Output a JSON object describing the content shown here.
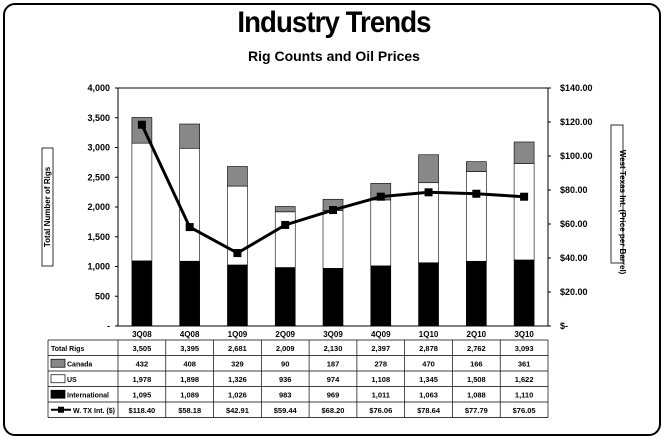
{
  "header": {
    "title": "Industry Trends",
    "subtitle": "Rig Counts and Oil Prices"
  },
  "chart_data": {
    "type": "bar",
    "stacked": true,
    "categories": [
      "3Q08",
      "4Q08",
      "1Q09",
      "2Q09",
      "3Q09",
      "4Q09",
      "1Q10",
      "2Q10",
      "3Q10"
    ],
    "ylabel": "Total Number of Rigs",
    "y2label": "West Texas Int. (Price per Barrel)",
    "ylim": [
      0,
      4000
    ],
    "y2lim": [
      0,
      140
    ],
    "yticks": [
      "-",
      "500",
      "1,000",
      "1,500",
      "2,000",
      "2,500",
      "3,000",
      "3,500",
      "4,000"
    ],
    "y2ticks": [
      "$-",
      "$20.00",
      "$40.00",
      "$60.00",
      "$80.00",
      "$100.00",
      "$120.00",
      "$140.00"
    ],
    "series": [
      {
        "name": "International",
        "kind": "bar",
        "color": "#000000",
        "values": [
          1095,
          1089,
          1026,
          983,
          969,
          1011,
          1063,
          1088,
          1110
        ]
      },
      {
        "name": "US",
        "kind": "bar",
        "color": "#ffffff",
        "values": [
          1978,
          1898,
          1326,
          936,
          974,
          1108,
          1345,
          1508,
          1622
        ]
      },
      {
        "name": "Canada",
        "kind": "bar",
        "color": "#888888",
        "values": [
          432,
          408,
          329,
          90,
          187,
          278,
          470,
          166,
          361
        ]
      },
      {
        "name": "W. TX Int. ($)",
        "kind": "line",
        "axis": "right",
        "color": "#000000",
        "values": [
          118.4,
          58.18,
          42.91,
          59.44,
          68.2,
          76.06,
          78.64,
          77.79,
          76.05
        ]
      }
    ],
    "grid": false,
    "table": {
      "total_label": "Total Rigs",
      "totals": [
        "3,505",
        "3,395",
        "2,681",
        "2,009",
        "2,130",
        "2,397",
        "2,878",
        "2,762",
        "3,093"
      ],
      "rows": [
        {
          "label": "Canada",
          "swatch": "#888888",
          "cells": [
            "432",
            "408",
            "329",
            "90",
            "187",
            "278",
            "470",
            "166",
            "361"
          ]
        },
        {
          "label": "US",
          "swatch": "#ffffff",
          "cells": [
            "1,978",
            "1,898",
            "1,326",
            "936",
            "974",
            "1,108",
            "1,345",
            "1,508",
            "1,622"
          ]
        },
        {
          "label": "International",
          "swatch": "#000000",
          "cells": [
            "1,095",
            "1,089",
            "1,026",
            "983",
            "969",
            "1,011",
            "1,063",
            "1,088",
            "1,110"
          ]
        },
        {
          "label": "W. TX Int. ($)",
          "swatch": "line",
          "cells": [
            "$118.40",
            "$58.18",
            "$42.91",
            "$59.44",
            "$68.20",
            "$76.06",
            "$78.64",
            "$77.79",
            "$76.05"
          ]
        }
      ]
    }
  }
}
